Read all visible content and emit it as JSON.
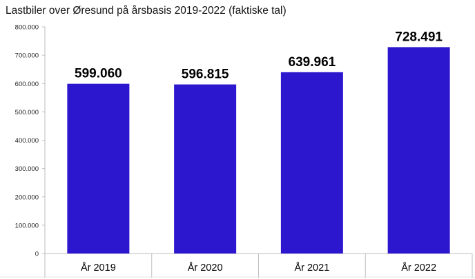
{
  "chart_data": {
    "type": "bar",
    "title": "Lastbiler over Øresund på årsbasis 2019-2022 (faktiske tal)",
    "categories": [
      "År 2019",
      "År 2020",
      "År 2021",
      "År 2022"
    ],
    "values": [
      599060,
      596815,
      639961,
      728491
    ],
    "data_labels": [
      "599.060",
      "596.815",
      "639.961",
      "728.491"
    ],
    "y_ticks": [
      0,
      100000,
      200000,
      300000,
      400000,
      500000,
      600000,
      700000,
      800000
    ],
    "y_tick_labels": [
      "0",
      "100.000",
      "200.000",
      "300.000",
      "400.000",
      "500.000",
      "600.000",
      "700.000",
      "800.000"
    ],
    "ylim": [
      0,
      800000
    ],
    "xlabel": "",
    "ylabel": "",
    "grid": false,
    "legend": "none",
    "colors": {
      "bar": "#2c17cf",
      "axis": "#bdbdbd"
    }
  }
}
